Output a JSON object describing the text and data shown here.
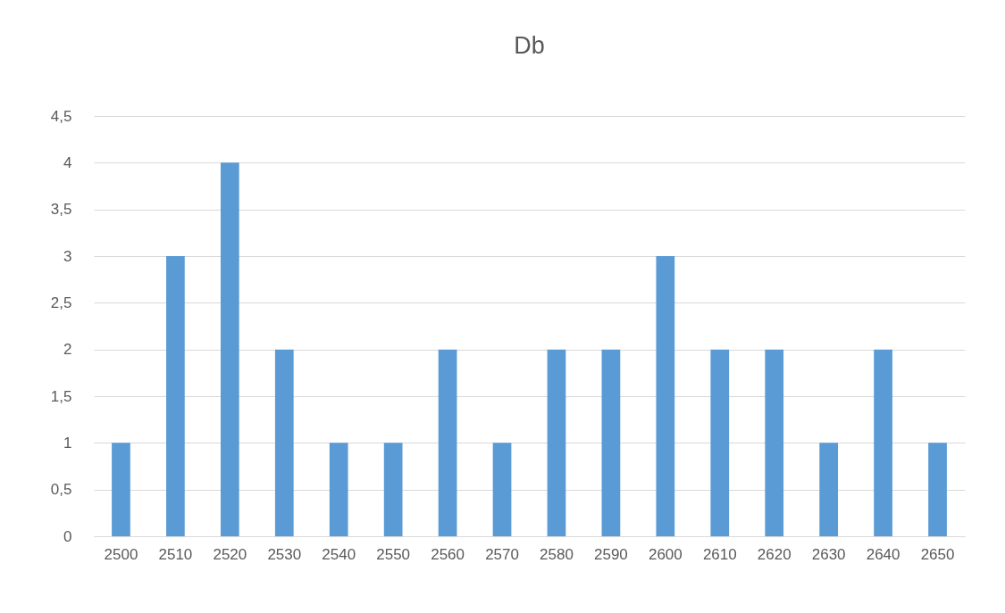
{
  "chart_data": {
    "type": "bar",
    "title": "Db",
    "categories": [
      "2500",
      "2510",
      "2520",
      "2530",
      "2540",
      "2550",
      "2560",
      "2570",
      "2580",
      "2590",
      "2600",
      "2610",
      "2620",
      "2630",
      "2640",
      "2650"
    ],
    "values": [
      1,
      3,
      4,
      2,
      1,
      1,
      2,
      1,
      2,
      2,
      3,
      2,
      2,
      1,
      2,
      1
    ],
    "color": "#5b9bd5",
    "ylim": [
      0,
      4.5
    ],
    "yticks": [
      0,
      {
        "value": 0.5,
        "label": "0,5"
      },
      1,
      {
        "value": 1.5,
        "label": "1,5"
      },
      2,
      {
        "value": 2.5,
        "label": "2,5"
      },
      3,
      {
        "value": 3.5,
        "label": "3,5"
      },
      4,
      {
        "value": 4.5,
        "label": "4,5"
      }
    ],
    "grid": "y",
    "legend": false
  }
}
